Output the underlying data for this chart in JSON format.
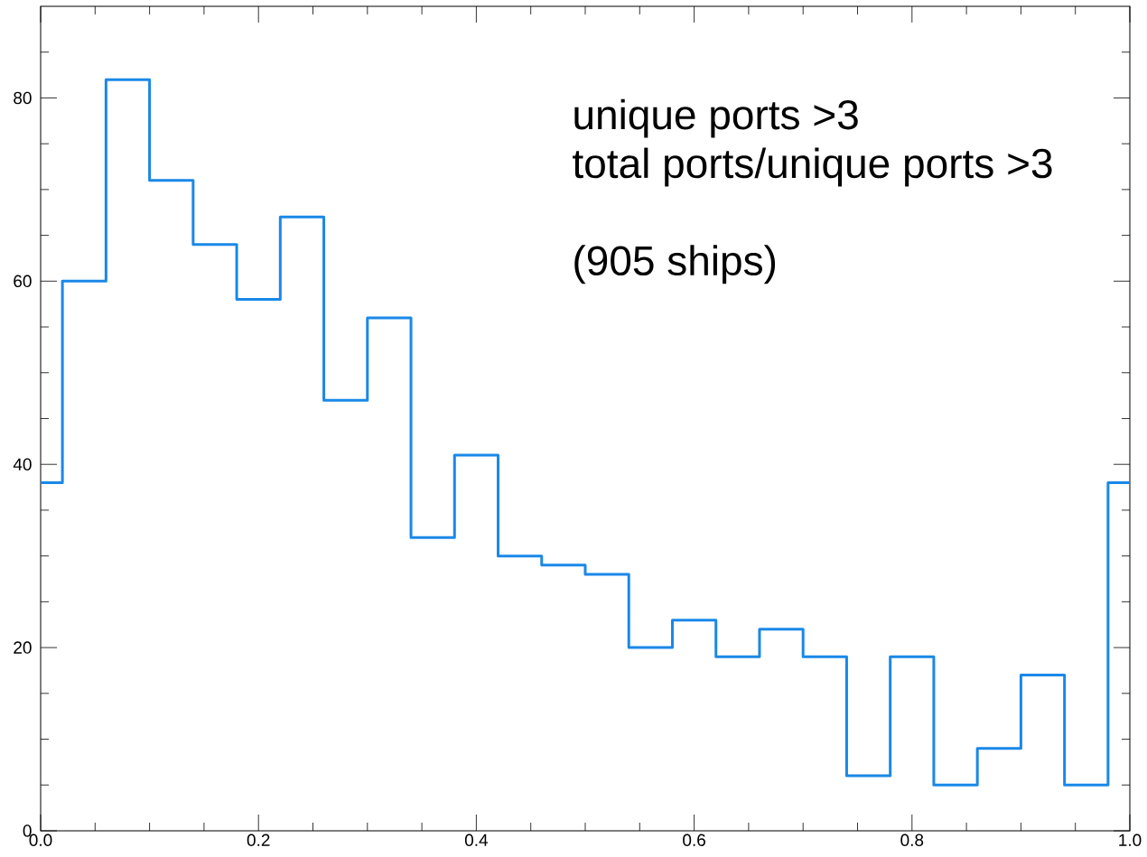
{
  "chart_data": {
    "type": "histogram",
    "bins": [
      0,
      0.02,
      0.06,
      0.1,
      0.14,
      0.18,
      0.22,
      0.26,
      0.3,
      0.34,
      0.38,
      0.42,
      0.46,
      0.5,
      0.54,
      0.58,
      0.62,
      0.66,
      0.7,
      0.74,
      0.78,
      0.82,
      0.86,
      0.9,
      0.94,
      0.98,
      1.0
    ],
    "values": [
      38,
      60,
      82,
      71,
      64,
      58,
      67,
      47,
      56,
      32,
      41,
      30,
      29,
      28,
      20,
      23,
      19,
      22,
      19,
      6,
      19,
      5,
      9,
      17,
      5,
      38
    ],
    "color": "#1a88e8",
    "xlim": [
      0,
      1.0
    ],
    "ylim": [
      0,
      90
    ],
    "xticks": [
      {
        "value": 0,
        "label": "0.0"
      },
      {
        "value": 0.05,
        "label": null
      },
      {
        "value": 0.1,
        "label": null
      },
      {
        "value": 0.15,
        "label": null
      },
      {
        "value": 0.2,
        "label": "0.2"
      },
      {
        "value": 0.25,
        "label": null
      },
      {
        "value": 0.3,
        "label": null
      },
      {
        "value": 0.35,
        "label": null
      },
      {
        "value": 0.4,
        "label": "0.4"
      },
      {
        "value": 0.45,
        "label": null
      },
      {
        "value": 0.5,
        "label": null
      },
      {
        "value": 0.55,
        "label": null
      },
      {
        "value": 0.6,
        "label": "0.6"
      },
      {
        "value": 0.65,
        "label": null
      },
      {
        "value": 0.7,
        "label": null
      },
      {
        "value": 0.75,
        "label": null
      },
      {
        "value": 0.8,
        "label": "0.8"
      },
      {
        "value": 0.85,
        "label": null
      },
      {
        "value": 0.9,
        "label": null
      },
      {
        "value": 0.95,
        "label": null
      },
      {
        "value": 1.0,
        "label": "1.0"
      }
    ],
    "yticks": [
      0,
      {
        "value": 5,
        "label": null
      },
      {
        "value": 10,
        "label": null
      },
      {
        "value": 15,
        "label": null
      },
      20,
      {
        "value": 25,
        "label": null
      },
      {
        "value": 30,
        "label": null
      },
      {
        "value": 35,
        "label": null
      },
      40,
      {
        "value": 45,
        "label": null
      },
      {
        "value": 50,
        "label": null
      },
      {
        "value": 55,
        "label": null
      },
      60,
      {
        "value": 65,
        "label": null
      },
      {
        "value": 70,
        "label": null
      },
      {
        "value": 75,
        "label": null
      },
      80,
      {
        "value": 85,
        "label": null
      }
    ],
    "annotations": [
      "unique ports >3",
      "total ports/unique ports >3",
      "(905 ships)"
    ],
    "line_style": "solid"
  }
}
